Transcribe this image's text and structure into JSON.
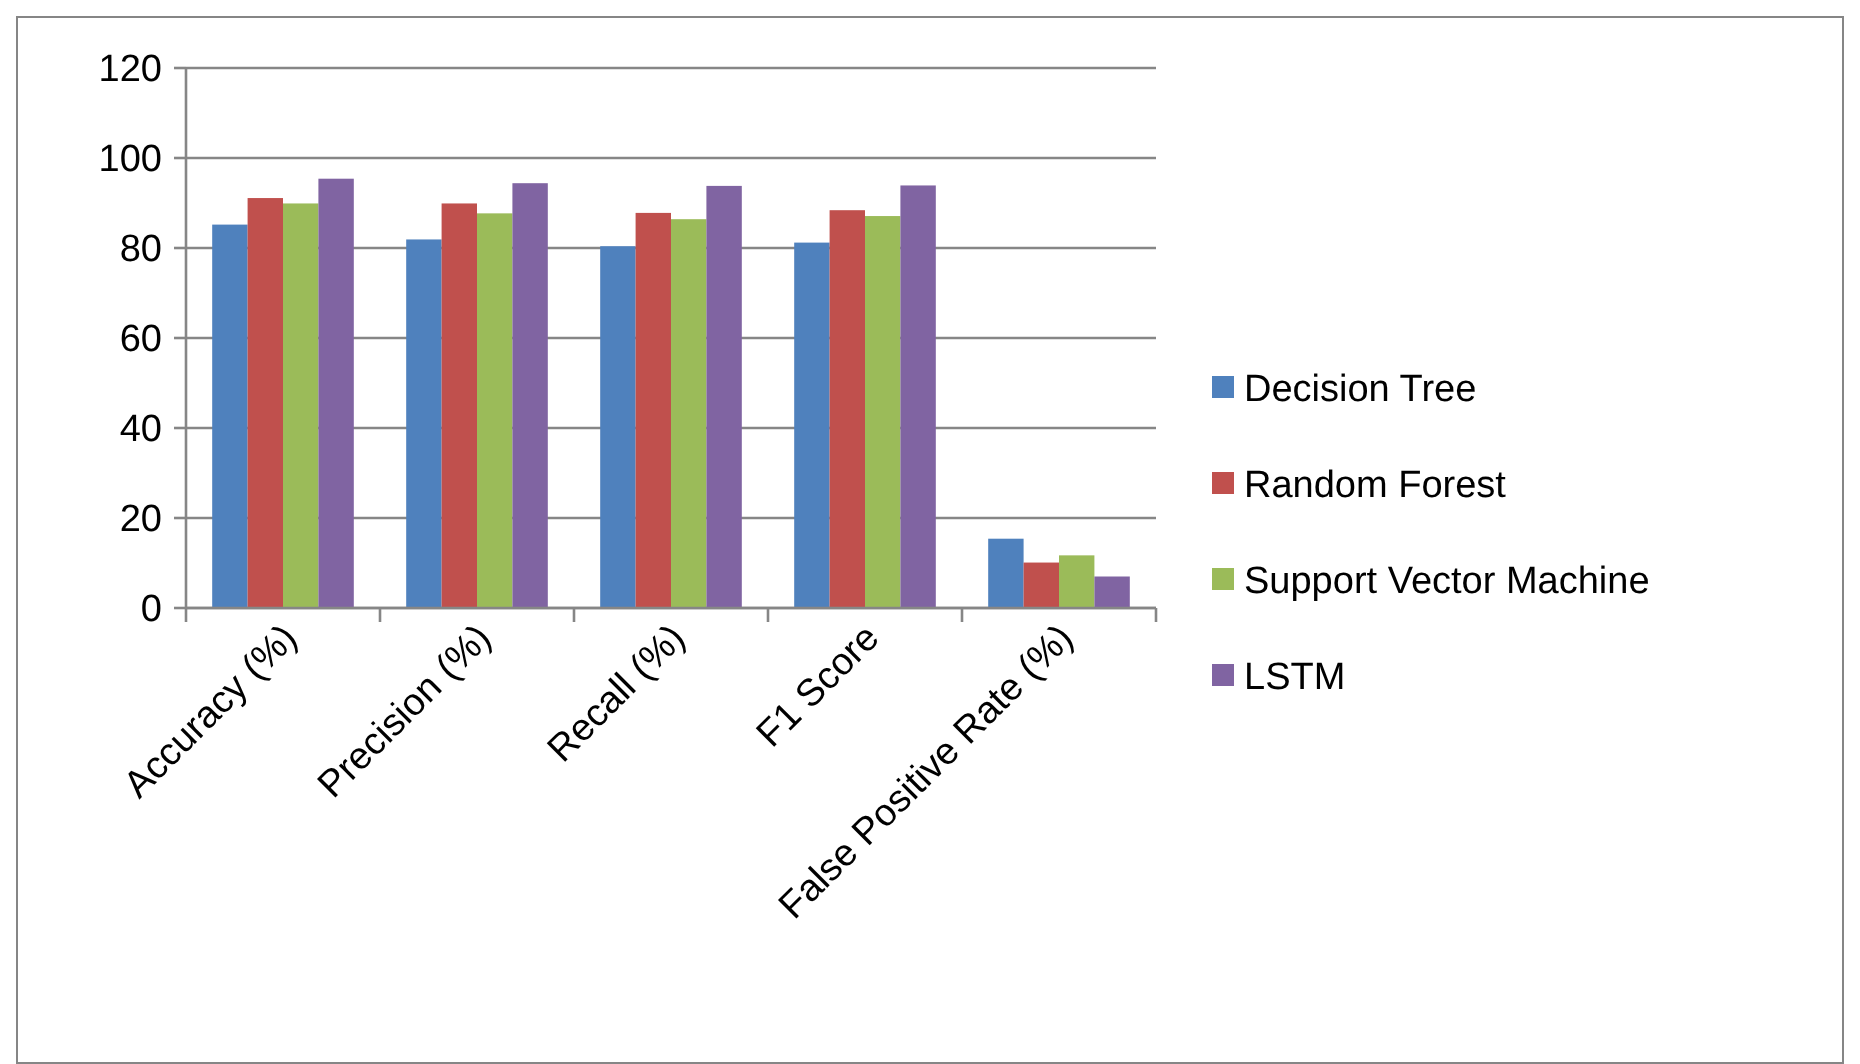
{
  "chart_data": {
    "type": "bar",
    "categories": [
      "Accuracy (%)",
      "Precision (%)",
      "Recall (%)",
      "F1 Score",
      "False Positive Rate (%)"
    ],
    "series": [
      {
        "name": "Decision Tree",
        "color": "#4f81bd",
        "values": [
          85.2,
          81.9,
          80.4,
          81.2,
          15.4
        ]
      },
      {
        "name": "Random Forest",
        "color": "#c0504d",
        "values": [
          91.1,
          89.9,
          87.8,
          88.4,
          10.1
        ]
      },
      {
        "name": "Support Vector Machine",
        "color": "#9bbb59",
        "values": [
          89.9,
          87.7,
          86.4,
          87.1,
          11.7
        ]
      },
      {
        "name": "LSTM",
        "color": "#8064a2",
        "values": [
          95.4,
          94.4,
          93.8,
          93.9,
          7.0
        ]
      }
    ],
    "ylim": [
      0,
      120
    ],
    "yticks": [
      0,
      20,
      40,
      60,
      80,
      100,
      120
    ],
    "grid": "y",
    "legend": "right"
  }
}
